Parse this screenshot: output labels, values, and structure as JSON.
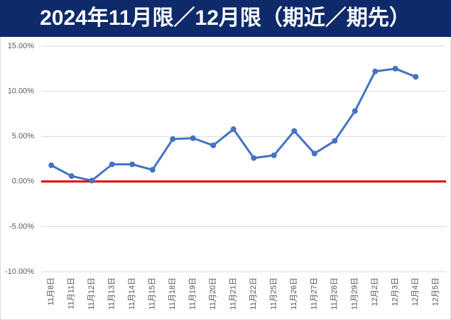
{
  "chart_data": {
    "type": "line",
    "title": "2024年11月限／12月限（期近／期先）",
    "categories": [
      "11月8日",
      "11月11日",
      "11月12日",
      "11月13日",
      "11月14日",
      "11月15日",
      "11月18日",
      "11月19日",
      "11月20日",
      "11月21日",
      "11月22日",
      "11月25日",
      "11月26日",
      "11月27日",
      "11月28日",
      "11月29日",
      "12月2日",
      "12月3日",
      "12月4日",
      "12月5日"
    ],
    "values": [
      1.8,
      0.6,
      0.1,
      1.9,
      1.9,
      1.3,
      4.7,
      4.8,
      4.0,
      5.8,
      2.6,
      2.9,
      5.6,
      3.1,
      4.5,
      7.8,
      12.2,
      12.5,
      11.6,
      null
    ],
    "color": "#4472c4",
    "zero_line_color": "#e00000",
    "ylim": [
      -10,
      15
    ],
    "yticks": [
      {
        "value": -10,
        "label": "-10.00%"
      },
      {
        "value": -5,
        "label": "-5.00%"
      },
      {
        "value": 0,
        "label": "0.00%"
      },
      {
        "value": 5,
        "label": "5.00%"
      },
      {
        "value": 10,
        "label": "10.00%"
      },
      {
        "value": 15,
        "label": "15.00%"
      }
    ],
    "grid": true
  }
}
